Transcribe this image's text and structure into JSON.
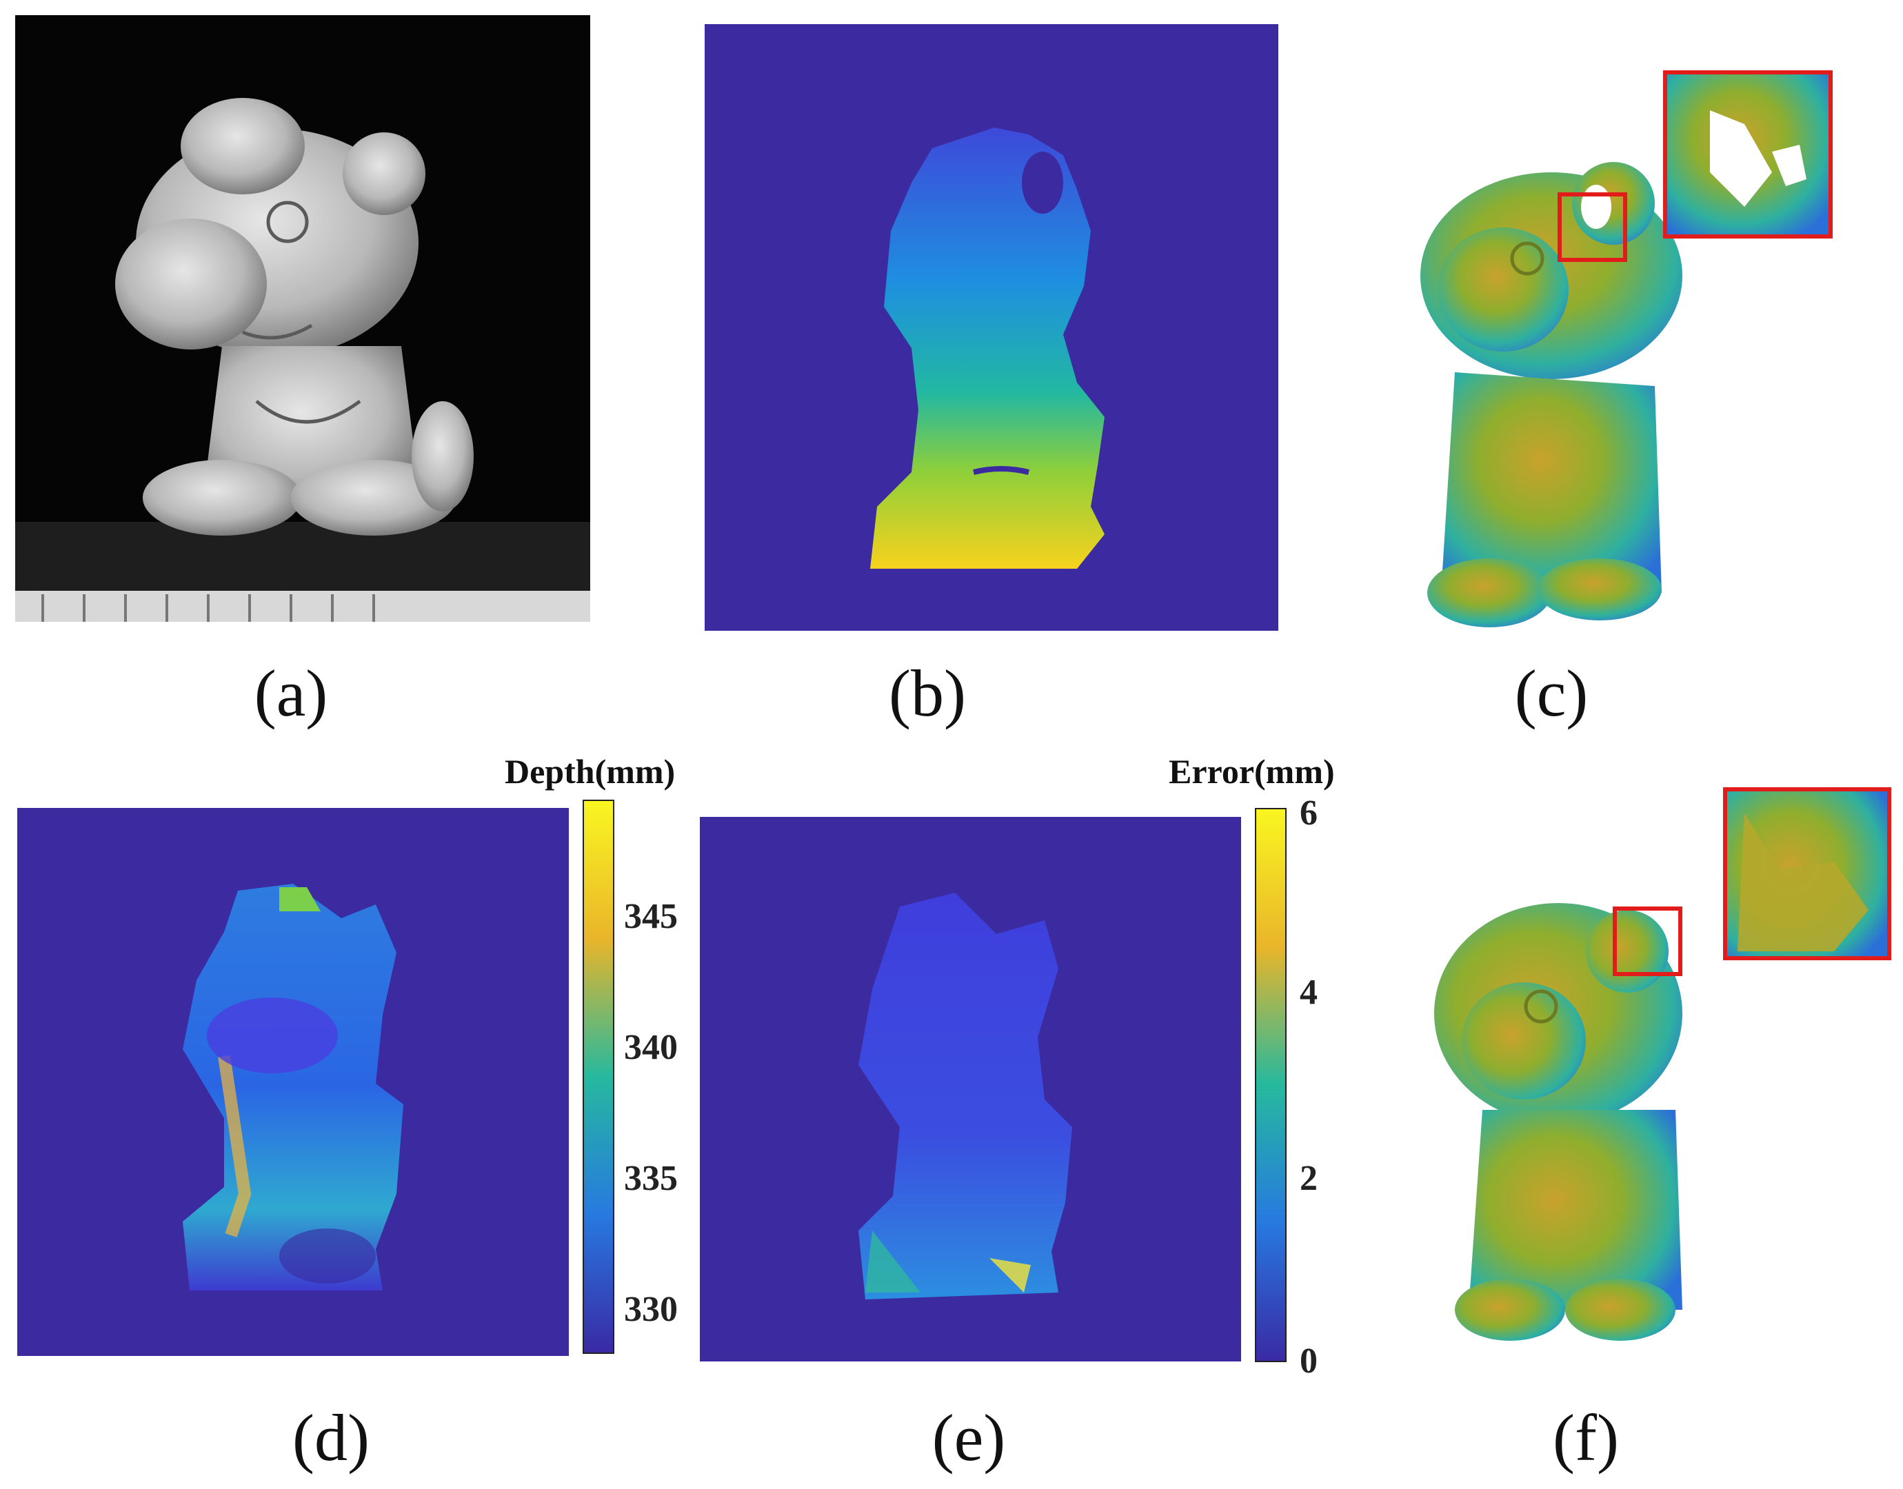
{
  "panels": {
    "a": {
      "label": "(a)"
    },
    "b": {
      "label": "(b)"
    },
    "c": {
      "label": "(c)"
    },
    "d": {
      "label": "(d)"
    },
    "e": {
      "label": "(e)"
    },
    "f": {
      "label": "(f)"
    }
  },
  "colorbars": {
    "depth": {
      "title": "Depth(mm)",
      "ticks": [
        "345",
        "340",
        "335",
        "330"
      ],
      "range": [
        327,
        349
      ]
    },
    "error": {
      "title": "Error(mm)",
      "ticks": [
        "6",
        "4",
        "2",
        "0"
      ],
      "range": [
        0,
        6
      ]
    }
  },
  "colors": {
    "background_blue": "#3b2aa0",
    "highlight_box": "#e21b1b"
  }
}
